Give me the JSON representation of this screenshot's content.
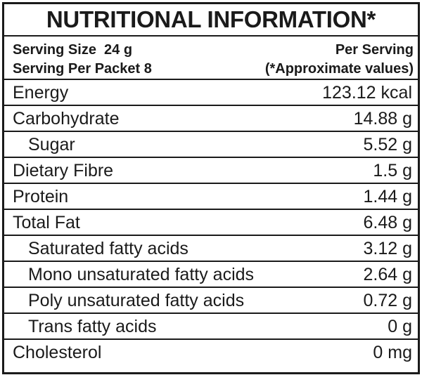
{
  "title": "NUTRITIONAL INFORMATION*",
  "serving": {
    "size_label": "Serving Size  24 g",
    "packet_label": "Serving Per Packet 8",
    "per_serving_label": "Per Serving",
    "approx_label": "(*Approximate values)"
  },
  "nutrients": [
    {
      "name": "Energy",
      "value": "123.12 kcal",
      "indent": false
    },
    {
      "name": "Carbohydrate",
      "value": "14.88 g",
      "indent": false
    },
    {
      "name": "Sugar",
      "value": "5.52 g",
      "indent": true
    },
    {
      "name": "Dietary Fibre",
      "value": "1.5 g",
      "indent": false
    },
    {
      "name": "Protein",
      "value": "1.44 g",
      "indent": false
    },
    {
      "name": "Total Fat",
      "value": "6.48 g",
      "indent": false
    },
    {
      "name": "Saturated fatty acids",
      "value": "3.12 g",
      "indent": true
    },
    {
      "name": "Mono unsaturated fatty acids",
      "value": "2.64 g",
      "indent": true
    },
    {
      "name": "Poly unsaturated fatty acids",
      "value": "0.72 g",
      "indent": true
    },
    {
      "name": "Trans fatty acids",
      "value": "0 g",
      "indent": true
    },
    {
      "name": "Cholesterol",
      "value": "0 mg",
      "indent": false
    }
  ]
}
